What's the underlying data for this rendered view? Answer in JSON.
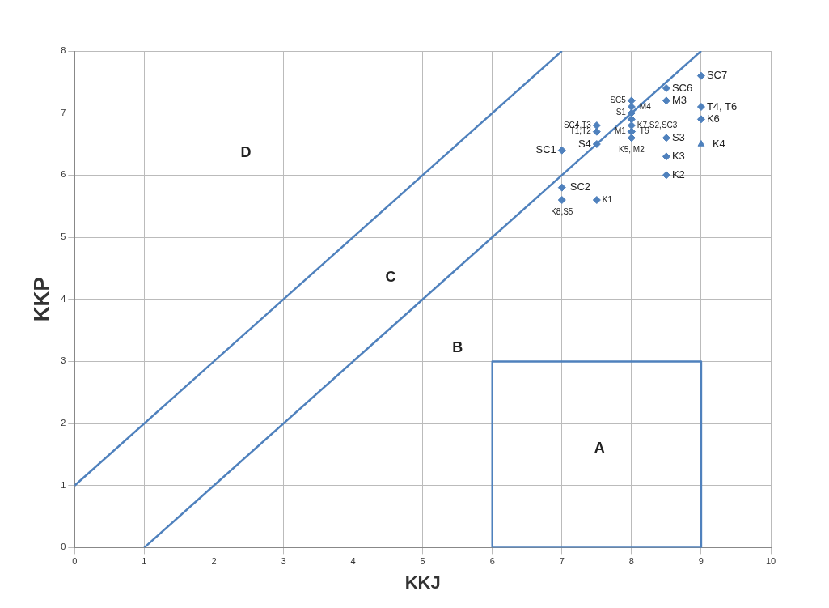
{
  "chart_data": {
    "type": "scatter",
    "xlabel": "KKJ",
    "ylabel": "KKP",
    "xlim": [
      0,
      10
    ],
    "ylim": [
      0,
      8
    ],
    "xticks": [
      0,
      1,
      2,
      3,
      4,
      5,
      6,
      7,
      8,
      9,
      10
    ],
    "yticks": [
      0,
      1,
      2,
      3,
      4,
      5,
      6,
      7,
      8
    ],
    "grid": true,
    "legend": false,
    "marker": "diamond",
    "series": [
      {
        "type": "line",
        "marker": "none",
        "color": "#4f81bd",
        "x": [
          0,
          7
        ],
        "values": [
          1,
          8
        ]
      },
      {
        "type": "line",
        "marker": "none",
        "color": "#4f81bd",
        "x": [
          1,
          9
        ],
        "values": [
          0,
          8
        ]
      },
      {
        "type": "line",
        "marker": "none",
        "color": "#4f81bd",
        "x": [
          6,
          6,
          9,
          9
        ],
        "values": [
          0,
          3,
          3,
          0
        ]
      },
      {
        "type": "line",
        "marker": "none",
        "color": "#4f81bd",
        "x": [
          6,
          9
        ],
        "values": [
          0,
          0
        ]
      },
      {
        "type": "scatter",
        "color": "#4f81bd",
        "x": [
          9,
          8.5,
          8.5,
          9,
          9,
          8.5,
          8.5,
          8.5,
          8,
          8,
          8,
          8,
          8,
          8,
          8,
          8,
          7.5,
          7.5,
          7.5,
          7,
          7,
          7,
          7.5
        ],
        "values": [
          7.6,
          7.4,
          7.2,
          7.1,
          6.9,
          6.6,
          6.3,
          6.0,
          7.2,
          7.1,
          7.0,
          6.9,
          6.8,
          6.7,
          6.7,
          6.6,
          6.8,
          6.7,
          6.5,
          6.4,
          5.8,
          5.6,
          5.6
        ],
        "value_labels": [
          "SC7",
          "SC6",
          "M3",
          "T4, T6",
          "K6",
          "S3",
          "K3",
          "K2",
          "SC5",
          "M4",
          "S1",
          null,
          "K7,S2,SC3",
          "M1",
          "T5",
          "K5, M2",
          "SC4,T3",
          "T1,T2",
          "S4",
          "SC1",
          "SC2",
          "K8,S5",
          "K1"
        ]
      },
      {
        "type": "scatter",
        "marker": "triangle",
        "color": "#4f81bd",
        "x": [
          9
        ],
        "values": [
          6.5
        ],
        "value_labels": [
          "K4"
        ]
      }
    ],
    "annotations": [
      "D",
      "C",
      "B",
      "A"
    ]
  }
}
